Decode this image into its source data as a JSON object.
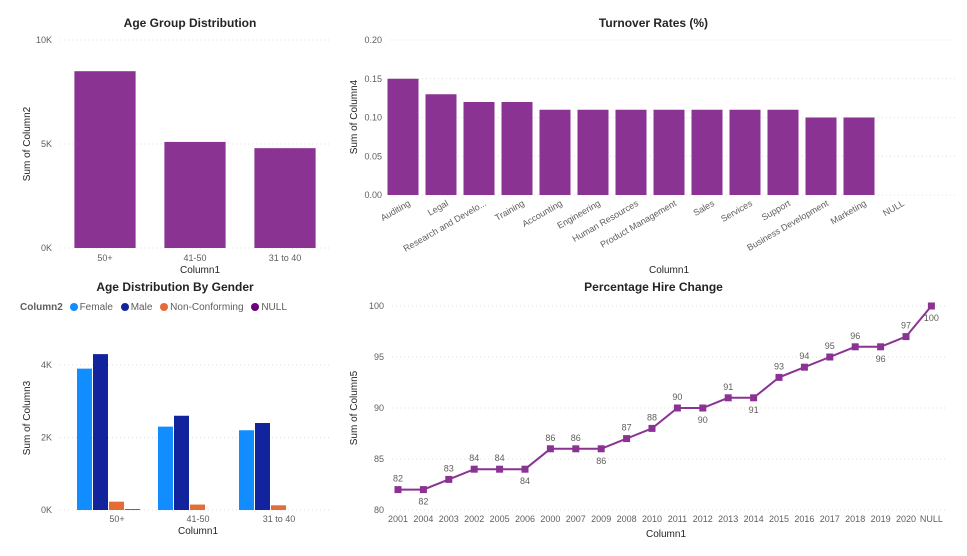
{
  "chart_data": [
    {
      "id": "age",
      "type": "bar",
      "title": "Age Group Distribution",
      "xlabel": "Column1",
      "ylabel": "Sum of Column2",
      "categories": [
        "50+",
        "41-50",
        "31 to 40"
      ],
      "values": [
        8500,
        5100,
        4800
      ],
      "ylim": [
        0,
        10000
      ],
      "yticks": [
        {
          "v": 0,
          "label": "0K"
        },
        {
          "v": 5000,
          "label": "5K"
        },
        {
          "v": 10000,
          "label": "10K"
        }
      ],
      "color": "#8A3393",
      "grid": true
    },
    {
      "id": "turnover",
      "type": "bar",
      "title": "Turnover Rates (%)",
      "xlabel": "Column1",
      "ylabel": "Sum of Column4",
      "categories": [
        "Auditing",
        "Legal",
        "Research and Develo...",
        "Training",
        "Accounting",
        "Engineering",
        "Human Resources",
        "Product Management",
        "Sales",
        "Services",
        "Support",
        "Business Development",
        "Marketing",
        "NULL"
      ],
      "values": [
        0.15,
        0.13,
        0.12,
        0.12,
        0.11,
        0.11,
        0.11,
        0.11,
        0.11,
        0.11,
        0.11,
        0.1,
        0.1,
        null
      ],
      "ylim": [
        0,
        0.2
      ],
      "yticks": [
        {
          "v": 0,
          "label": "0.00"
        },
        {
          "v": 0.05,
          "label": "0.05"
        },
        {
          "v": 0.1,
          "label": "0.10"
        },
        {
          "v": 0.15,
          "label": "0.15"
        },
        {
          "v": 0.2,
          "label": "0.20"
        }
      ],
      "color": "#8A3393",
      "grid": true
    },
    {
      "id": "gender",
      "type": "bar",
      "title": "Age Distribution By Gender",
      "xlabel": "Column1",
      "ylabel": "Sum of Column3",
      "legend_title": "Column2",
      "legend_position": "top-left",
      "categories": [
        "50+",
        "41-50",
        "31 to 40"
      ],
      "series": [
        {
          "name": "Female",
          "color": "#118DFF",
          "values": [
            3900,
            2300,
            2200
          ]
        },
        {
          "name": "Male",
          "color": "#12239E",
          "values": [
            4300,
            2600,
            2400
          ]
        },
        {
          "name": "Non-Conforming",
          "color": "#E66C37",
          "values": [
            230,
            150,
            130
          ]
        },
        {
          "name": "NULL",
          "color": "#6B007B",
          "values": [
            20,
            0,
            0
          ]
        }
      ],
      "ylim": [
        0,
        4800
      ],
      "yticks": [
        {
          "v": 0,
          "label": "0K"
        },
        {
          "v": 2000,
          "label": "2K"
        },
        {
          "v": 4000,
          "label": "4K"
        }
      ],
      "grid": true
    },
    {
      "id": "hire",
      "type": "line",
      "title": "Percentage Hire Change",
      "xlabel": "Column1",
      "ylabel": "Sum of Column5",
      "x": [
        "2001",
        "2004",
        "2003",
        "2002",
        "2005",
        "2006",
        "2000",
        "2007",
        "2009",
        "2008",
        "2010",
        "2011",
        "2012",
        "2013",
        "2014",
        "2015",
        "2016",
        "2017",
        "2018",
        "2019",
        "2020",
        "NULL"
      ],
      "values": [
        82,
        82,
        83,
        84,
        84,
        84,
        86,
        86,
        86,
        87,
        88,
        90,
        90,
        91,
        91,
        93,
        94,
        95,
        96,
        96,
        97,
        100
      ],
      "label_pos": [
        "above",
        "below",
        "above",
        "above",
        "above",
        "below",
        "above",
        "above",
        "below",
        "above",
        "above",
        "above",
        "below",
        "above",
        "below",
        "above",
        "above",
        "above",
        "above",
        "below",
        "above",
        "below"
      ],
      "ylim": [
        80,
        100
      ],
      "yticks": [
        {
          "v": 80,
          "label": "80"
        },
        {
          "v": 85,
          "label": "85"
        },
        {
          "v": 90,
          "label": "90"
        },
        {
          "v": 95,
          "label": "95"
        },
        {
          "v": 100,
          "label": "100"
        }
      ],
      "color": "#8A3393",
      "grid": true
    }
  ]
}
